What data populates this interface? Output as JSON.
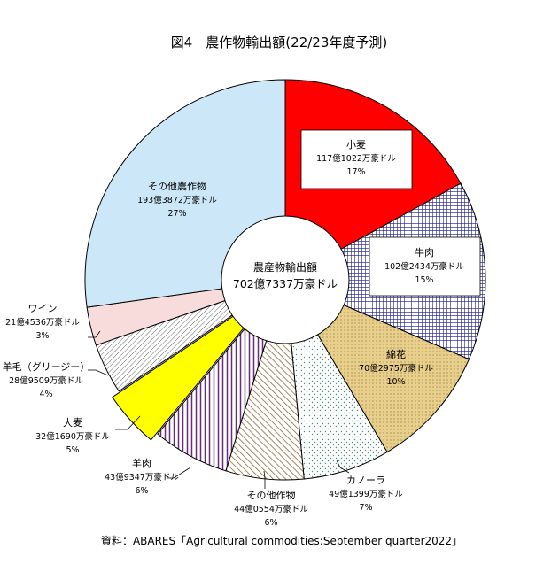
{
  "chart_data": {
    "type": "pie",
    "title": "図4　農作物輸出額(22/23年度予測)",
    "center_label": "農産物輸出額",
    "center_value": "702億7337万豪ドル",
    "source": "資料：ABARES「Agricultural commodities:September  quarter2022」",
    "slices": [
      {
        "label": "小麦",
        "amount": "117億1022万豪ドル",
        "percent_label": "17%",
        "value": 17.0,
        "color": "#ff0000",
        "pattern": "solid"
      },
      {
        "label": "牛肉",
        "amount": "102億2434万豪ドル",
        "percent_label": "15%",
        "value": 14.5,
        "color": "#1a1a8c",
        "pattern": "grid"
      },
      {
        "label": "綿花",
        "amount": "70億2975万豪ドル",
        "percent_label": "10%",
        "value": 10.0,
        "color": "#e8cf8c",
        "pattern": "dots"
      },
      {
        "label": "カノーラ",
        "amount": "49億1399万豪ドル",
        "percent_label": "7%",
        "value": 7.0,
        "color": "#6ab0a0",
        "pattern": "sparse-dots"
      },
      {
        "label": "その他作物",
        "amount": "44億0554万豪ドル",
        "percent_label": "6%",
        "value": 6.3,
        "color": "#8b6b3a",
        "pattern": "diagonal"
      },
      {
        "label": "羊肉",
        "amount": "43億9347万豪ドル",
        "percent_label": "6%",
        "value": 6.2,
        "color": "#6a2a7a",
        "pattern": "vertical"
      },
      {
        "label": "大麦",
        "amount": "32億1690万豪ドル",
        "percent_label": "5%",
        "value": 4.6,
        "color": "#ffff00",
        "pattern": "solid"
      },
      {
        "label": "羊毛（グリージー）",
        "amount": "28億9509万豪ドル",
        "percent_label": "4%",
        "value": 4.1,
        "color": "#555555",
        "pattern": "diagonal-dense"
      },
      {
        "label": "ワイン",
        "amount": "21億4536万豪ドル",
        "percent_label": "3%",
        "value": 3.1,
        "color": "#f8dcdc",
        "pattern": "solid"
      },
      {
        "label": "その他農作物",
        "amount": "193億3872万豪ドル",
        "percent_label": "27%",
        "value": 27.2,
        "color": "#cce8f8",
        "pattern": "solid"
      }
    ]
  }
}
